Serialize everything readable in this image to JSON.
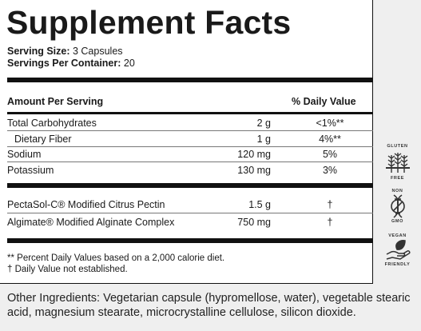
{
  "title": "Supplement Facts",
  "serving_size_label": "Serving Size:",
  "serving_size_value": "3 Capsules",
  "servings_per_container_label": "Servings Per Container:",
  "servings_per_container_value": "20",
  "header": {
    "amount_per_serving": "Amount Per Serving",
    "daily_value": "% Daily Value"
  },
  "nutrients": [
    {
      "name": "Total Carbohydrates",
      "amount": "2 g",
      "dv": "<1%**"
    },
    {
      "name": "Dietary Fiber",
      "amount": "1 g",
      "dv": "4%**"
    },
    {
      "name": "Sodium",
      "amount": "120 mg",
      "dv": "5%"
    },
    {
      "name": "Potassium",
      "amount": "130 mg",
      "dv": "3%"
    }
  ],
  "actives": [
    {
      "name": "PectaSol-C® Modified Citrus Pectin",
      "amount": "1.5 g",
      "dv": "†"
    },
    {
      "name": "Algimate® Modified Alginate Complex",
      "amount": "750 mg",
      "dv": "†"
    }
  ],
  "footnotes": [
    "** Percent Daily Values based on a 2,000 calorie diet.",
    "† Daily Value not established."
  ],
  "other_ingredients_label": "Other Ingredients:",
  "other_ingredients_text": " Vegetarian capsule (hypromellose, water), vegetable stearic acid, magnesium stearate, microcrystalline cellulose, silicon dioxide.",
  "badges": {
    "gluten_top": "GLUTEN",
    "gluten_bottom": "FREE",
    "gmo_top": "NON",
    "gmo_bottom": "GMO",
    "vegan_top": "VEGAN",
    "vegan_bottom": "FRIENDLY"
  }
}
